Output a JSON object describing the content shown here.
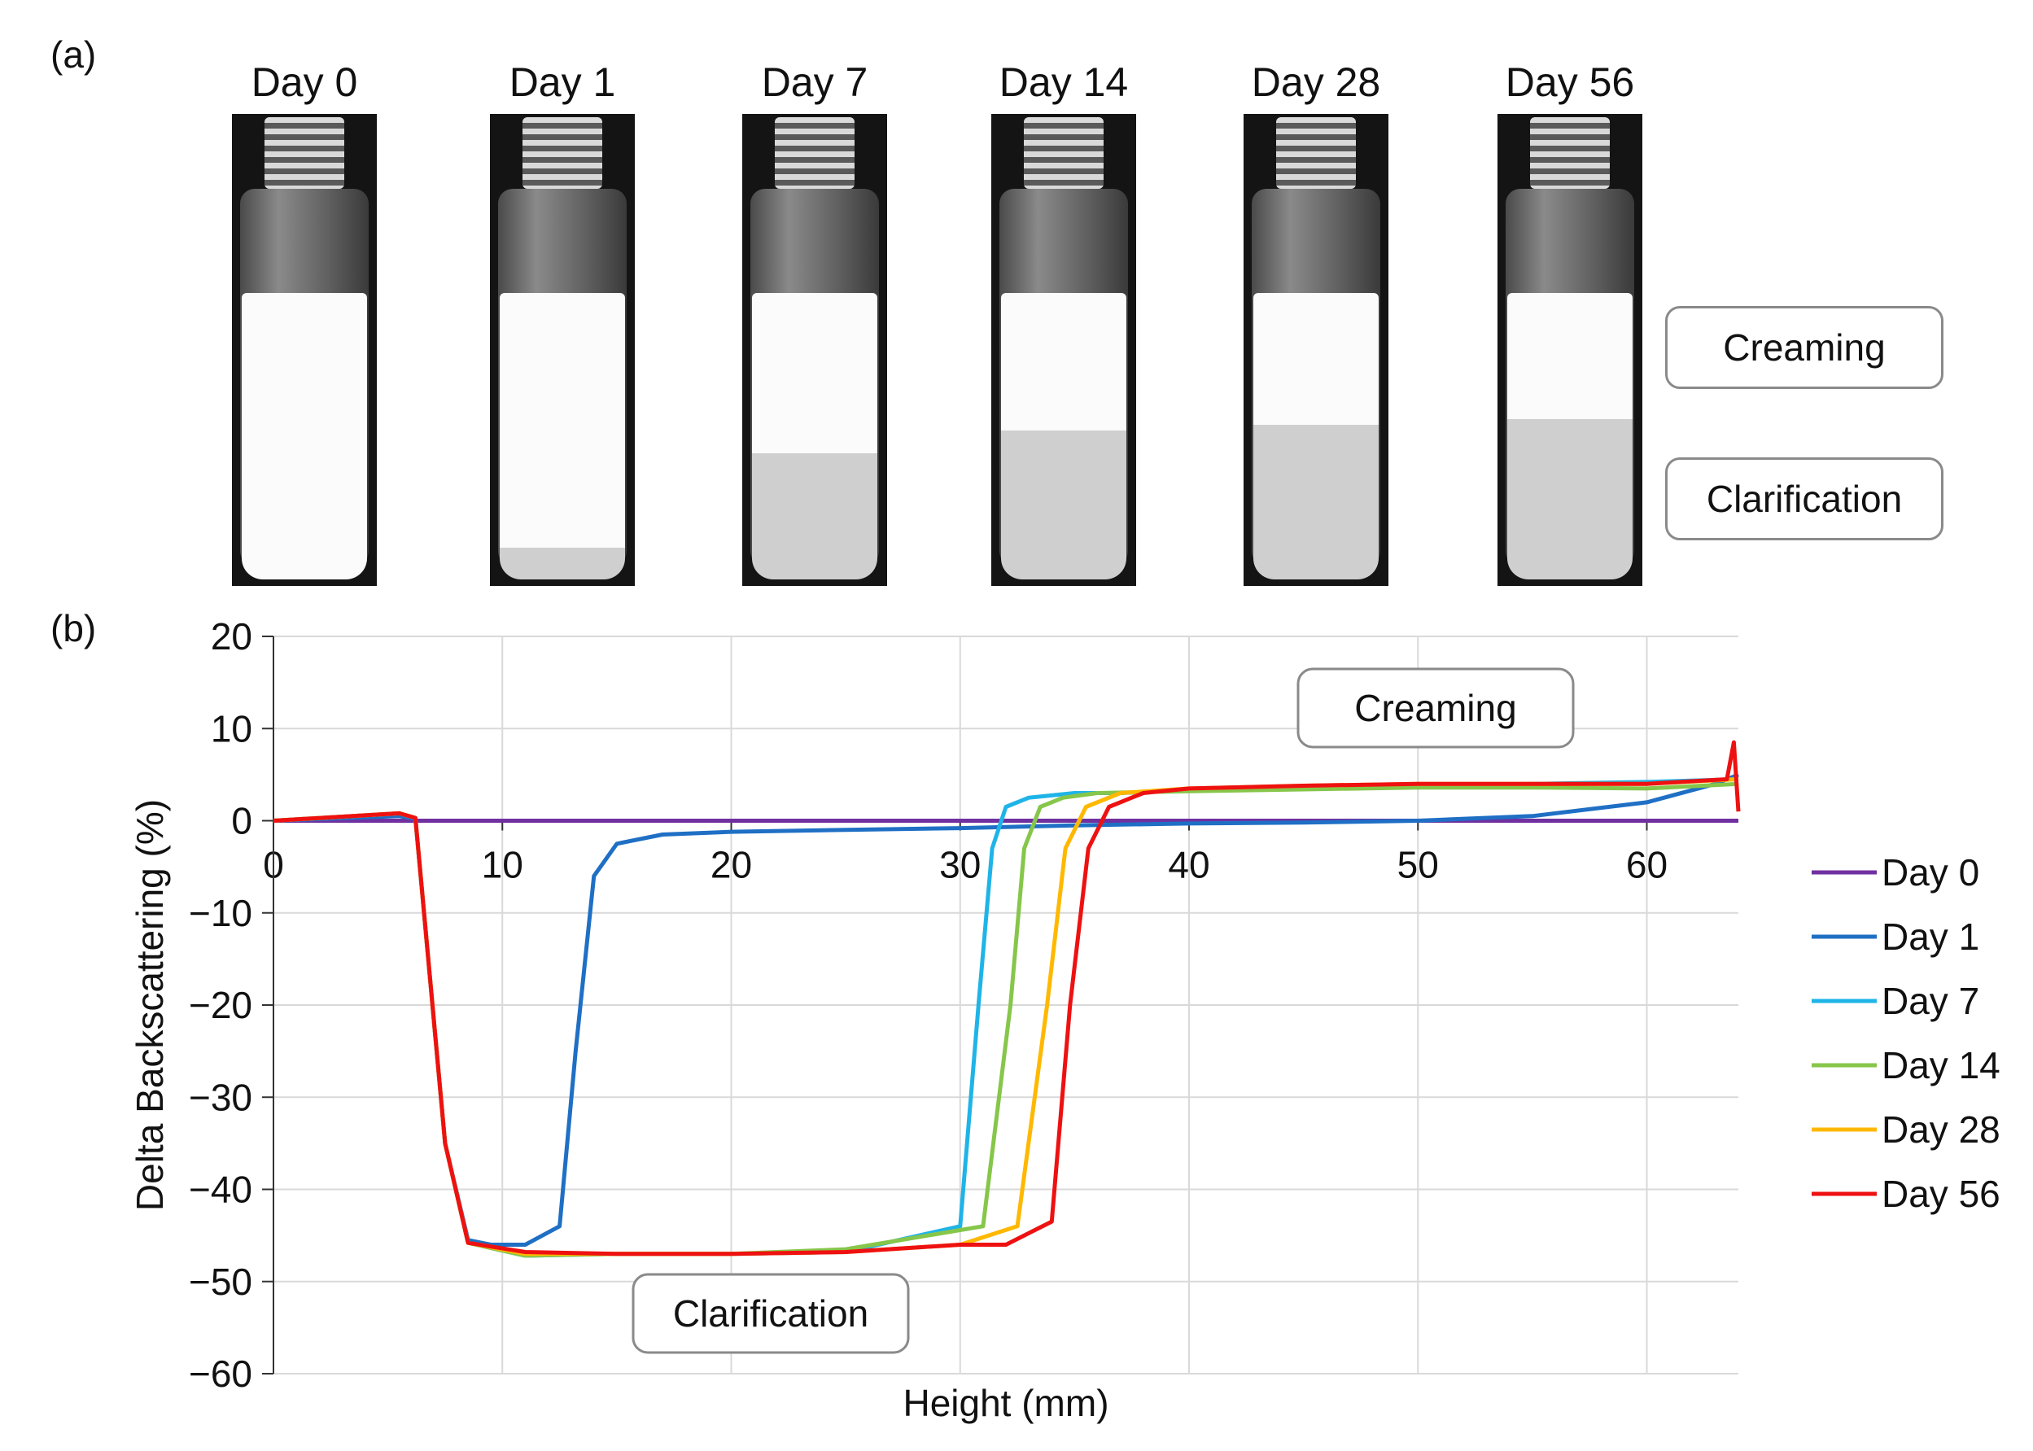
{
  "panel_a_label": "(a)",
  "panel_b_label": "(b)",
  "vials": [
    {
      "label": "Day 0",
      "cream_fraction": 1.0
    },
    {
      "label": "Day 1",
      "cream_fraction": 0.89
    },
    {
      "label": "Day 7",
      "cream_fraction": 0.56
    },
    {
      "label": "Day 14",
      "cream_fraction": 0.48
    },
    {
      "label": "Day 28",
      "cream_fraction": 0.46
    },
    {
      "label": "Day 56",
      "cream_fraction": 0.44
    }
  ],
  "callouts_a": {
    "creaming": "Creaming",
    "clarification": "Clarification"
  },
  "callouts_b": {
    "creaming": "Creaming",
    "clarification": "Clarification"
  },
  "colors": {
    "Day 0": "#7030a0",
    "Day 1": "#1f6fc5",
    "Day 7": "#1fb4e8",
    "Day 14": "#86c64a",
    "Day 28": "#ffb800",
    "Day 56": "#ee1111"
  },
  "chart_data": {
    "type": "line",
    "title": "",
    "xlabel": "Height (mm)",
    "ylabel": "Delta Backscattering (%)",
    "xlim": [
      0,
      64
    ],
    "ylim": [
      -60,
      20
    ],
    "xticks": [
      0,
      10,
      20,
      30,
      40,
      50,
      60
    ],
    "yticks": [
      20,
      10,
      0,
      -10,
      -20,
      -30,
      -40,
      -50,
      -60
    ],
    "grid": true,
    "legend_position": "right",
    "series": [
      {
        "name": "Day 0",
        "x": [
          0,
          64
        ],
        "y": [
          0,
          0
        ]
      },
      {
        "name": "Day 1",
        "x": [
          0,
          5.5,
          6.2,
          7.5,
          8.5,
          9.5,
          11,
          12.5,
          13.2,
          14,
          15,
          17,
          20,
          25,
          30,
          35,
          40,
          45,
          50,
          55,
          60,
          63,
          64
        ],
        "y": [
          0,
          0.5,
          0.2,
          -35,
          -45.5,
          -46,
          -46,
          -44,
          -25,
          -6,
          -2.5,
          -1.5,
          -1.2,
          -1,
          -0.8,
          -0.5,
          -0.3,
          -0.2,
          0,
          0.5,
          2,
          4,
          5
        ]
      },
      {
        "name": "Day 7",
        "x": [
          0,
          5.5,
          6.2,
          7.5,
          8.5,
          11,
          15,
          20,
          25,
          30,
          30.8,
          31.4,
          32,
          33,
          35,
          37,
          40,
          45,
          50,
          55,
          60,
          64
        ],
        "y": [
          0,
          0.8,
          0.3,
          -35,
          -45.8,
          -47.2,
          -47,
          -47,
          -46.8,
          -44,
          -20,
          -3,
          1.5,
          2.5,
          3,
          3,
          3.3,
          3.5,
          3.8,
          4,
          4.2,
          4.5
        ]
      },
      {
        "name": "Day 14",
        "x": [
          0,
          5.5,
          6.2,
          7.5,
          8.5,
          11,
          15,
          20,
          25,
          31,
          32.2,
          32.8,
          33.5,
          34.5,
          36,
          40,
          45,
          50,
          55,
          60,
          64
        ],
        "y": [
          0,
          0.8,
          0.3,
          -35,
          -45.8,
          -47.2,
          -47,
          -47,
          -46.5,
          -44,
          -20,
          -3,
          1.5,
          2.5,
          3,
          3.2,
          3.4,
          3.6,
          3.6,
          3.5,
          4
        ]
      },
      {
        "name": "Day 28",
        "x": [
          0,
          5.5,
          6.2,
          7.5,
          8.5,
          11,
          15,
          20,
          25,
          30,
          32.5,
          33.8,
          34.6,
          35.5,
          37,
          40,
          45,
          50,
          55,
          60,
          64
        ],
        "y": [
          0,
          0.8,
          0.3,
          -35,
          -45.8,
          -47,
          -47,
          -47,
          -46.8,
          -46,
          -44,
          -20,
          -3,
          1.5,
          3,
          3.5,
          3.8,
          4,
          4,
          4,
          4.5
        ]
      },
      {
        "name": "Day 56",
        "x": [
          0,
          5.5,
          6.2,
          7.5,
          8.5,
          11,
          15,
          20,
          25,
          30,
          32,
          34,
          34.8,
          35.6,
          36.5,
          38,
          40,
          45,
          50,
          55,
          60,
          63.5,
          63.8,
          64
        ],
        "y": [
          0,
          0.8,
          0.3,
          -35,
          -45.8,
          -46.8,
          -47,
          -47,
          -46.8,
          -46,
          -46,
          -43.5,
          -20,
          -3,
          1.5,
          3,
          3.5,
          3.8,
          4,
          4,
          4,
          4.5,
          8.5,
          1
        ]
      }
    ]
  }
}
